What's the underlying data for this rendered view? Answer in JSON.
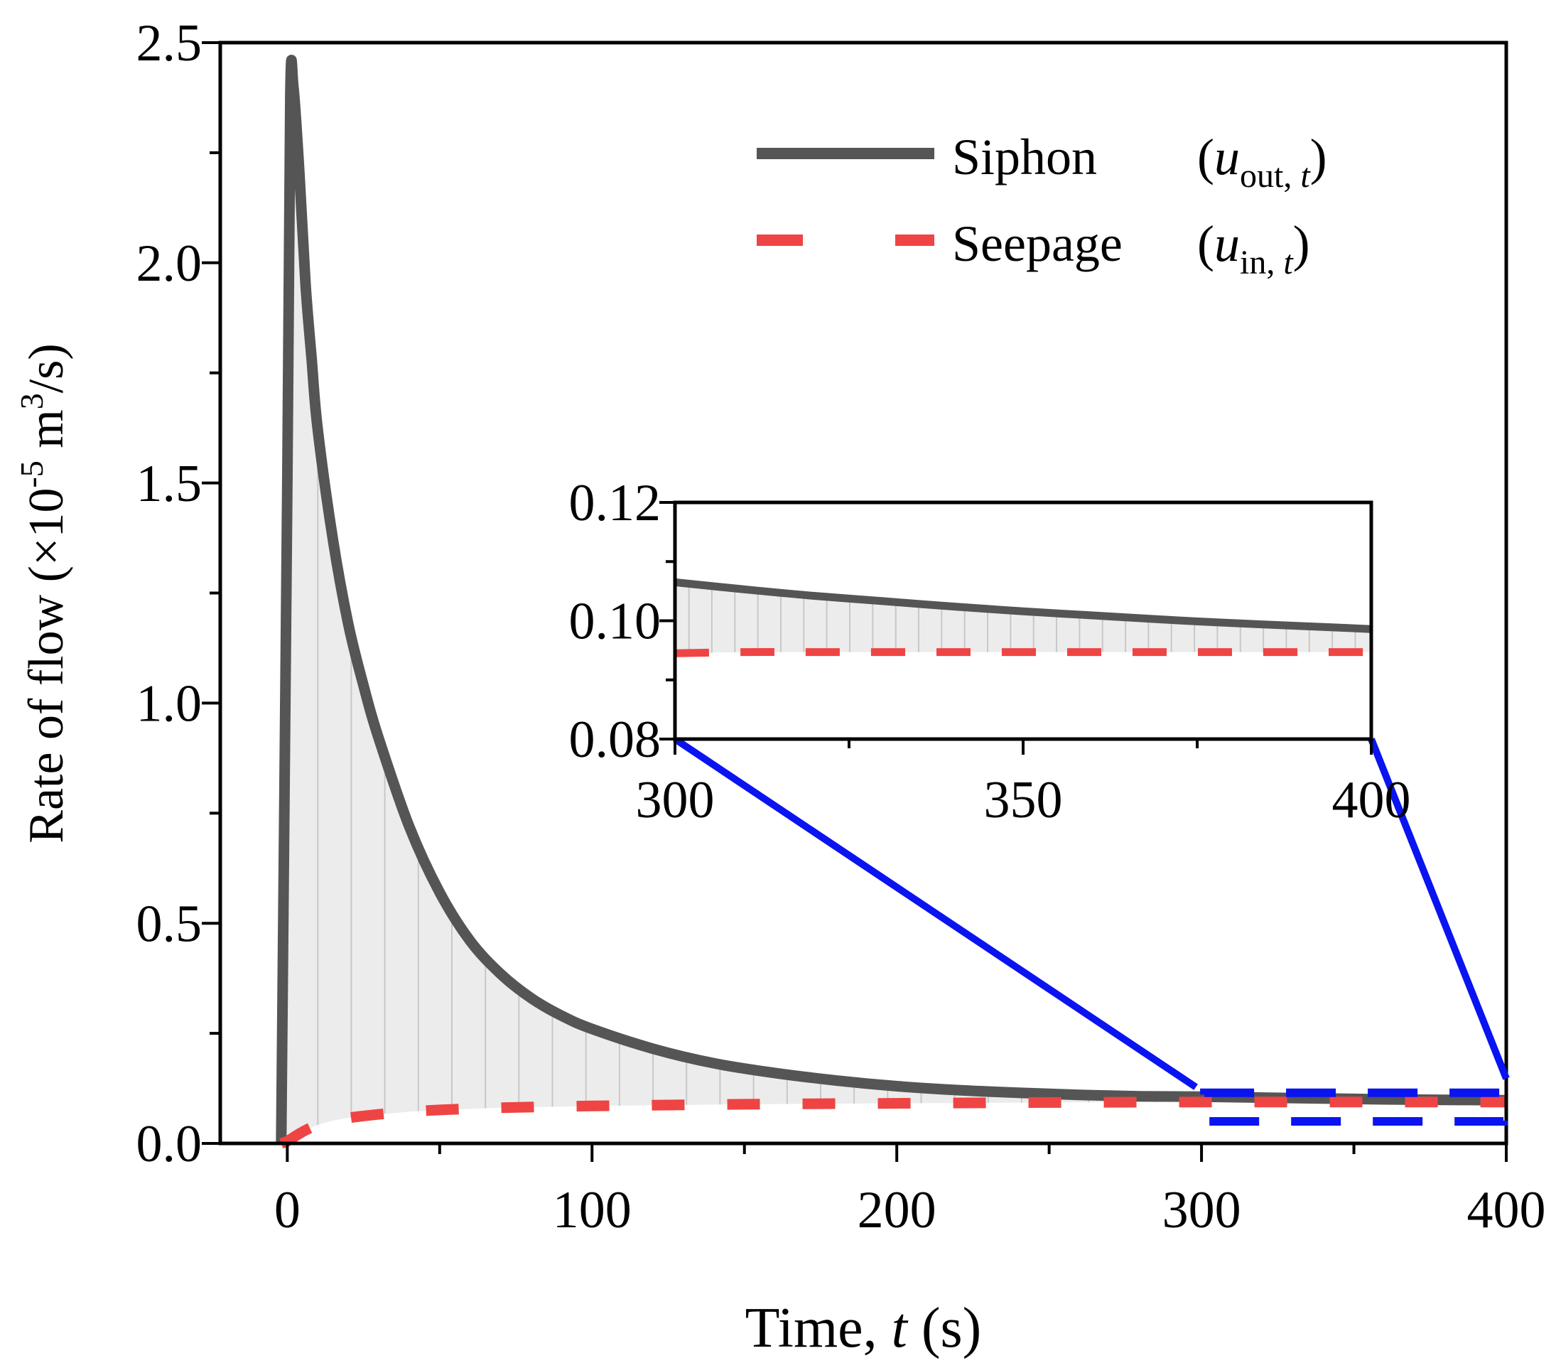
{
  "chart_data": [
    {
      "type": "line",
      "role": "main",
      "xlabel_prefix": "Time, ",
      "xlabel_var": "t",
      "xlabel_suffix": " (s)",
      "ylabel_prefix": "Rate of flow (×10",
      "ylabel_exp": "-5",
      "ylabel_mid": " m",
      "ylabel_exp2": "3",
      "ylabel_suffix": "/s)",
      "xlim": [
        -22,
        400
      ],
      "ylim": [
        0,
        2.5
      ],
      "xticks": [
        0,
        100,
        200,
        300,
        400
      ],
      "xtick_labels": [
        "0",
        "100",
        "200",
        "300",
        "400"
      ],
      "yticks": [
        0.0,
        0.5,
        1.0,
        1.5,
        2.0,
        2.5
      ],
      "ytick_labels": [
        "0.0",
        "0.5",
        "1.0",
        "1.5",
        "2.0",
        "2.5"
      ],
      "legend": [
        {
          "name": "Siphon",
          "symbol_prefix": "(",
          "var": "u",
          "sub": "out, ",
          "sub_var": "t",
          "symbol_suffix": ")",
          "color": "#555555",
          "style": "solid"
        },
        {
          "name": "Seepage",
          "symbol_prefix": "(",
          "var": "u",
          "sub": "in, ",
          "sub_var": "t",
          "symbol_suffix": ")",
          "color": "#ef4444",
          "style": "dashed"
        }
      ],
      "legend_position": "top-right",
      "series": [
        {
          "name": "Siphon",
          "x": [
            -2,
            0,
            1,
            2,
            4,
            6,
            8,
            10,
            15,
            20,
            25,
            30,
            40,
            50,
            60,
            70,
            80,
            90,
            100,
            120,
            140,
            160,
            180,
            200,
            220,
            240,
            260,
            280,
            300,
            320,
            340,
            360,
            380,
            400
          ],
          "y": [
            0.0,
            1.5,
            2.38,
            2.4,
            2.2,
            1.95,
            1.78,
            1.62,
            1.37,
            1.18,
            1.04,
            0.92,
            0.72,
            0.57,
            0.46,
            0.385,
            0.33,
            0.29,
            0.26,
            0.215,
            0.182,
            0.16,
            0.143,
            0.13,
            0.121,
            0.115,
            0.11,
            0.107,
            0.106,
            0.104,
            0.102,
            0.1,
            0.099,
            0.098
          ]
        },
        {
          "name": "Seepage",
          "x": [
            -2,
            0,
            3,
            6,
            10,
            15,
            20,
            30,
            40,
            50,
            70,
            100,
            150,
            200,
            250,
            300,
            350,
            400
          ],
          "y": [
            0.0,
            0.005,
            0.018,
            0.03,
            0.042,
            0.052,
            0.058,
            0.066,
            0.072,
            0.076,
            0.081,
            0.085,
            0.089,
            0.091,
            0.093,
            0.094,
            0.094,
            0.094
          ]
        }
      ],
      "zoom_box": {
        "x": [
          300,
          400
        ],
        "y": [
          0.05,
          0.115
        ]
      }
    },
    {
      "type": "line",
      "role": "inset",
      "xlim": [
        300,
        400
      ],
      "ylim": [
        0.08,
        0.12
      ],
      "xticks": [
        300,
        350,
        400
      ],
      "xtick_labels": [
        "300",
        "350",
        "400"
      ],
      "yticks": [
        0.08,
        0.1,
        0.12
      ],
      "ytick_labels": [
        "0.08",
        "0.10",
        "0.12"
      ],
      "series": [
        {
          "name": "Siphon",
          "x": [
            300,
            310,
            320,
            330,
            340,
            350,
            360,
            370,
            380,
            390,
            400
          ],
          "y": [
            0.1065,
            0.1053,
            0.1042,
            0.1033,
            0.1024,
            0.1016,
            0.1009,
            0.1002,
            0.0996,
            0.0991,
            0.0986
          ]
        },
        {
          "name": "Seepage",
          "x": [
            300,
            310,
            320,
            340,
            360,
            380,
            400
          ],
          "y": [
            0.0945,
            0.0947,
            0.0947,
            0.0947,
            0.0947,
            0.0947,
            0.0947
          ]
        }
      ]
    }
  ]
}
